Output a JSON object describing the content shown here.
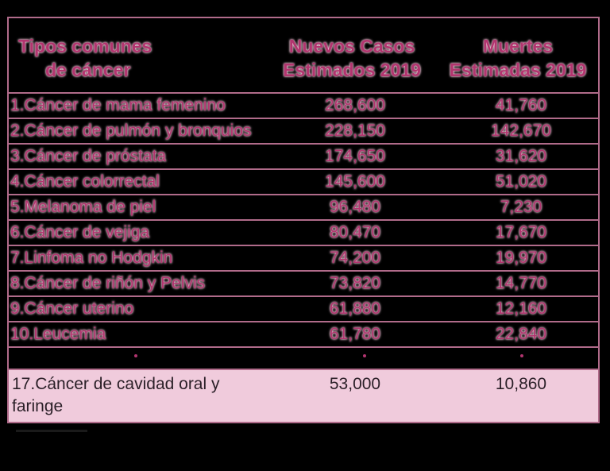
{
  "header": {
    "type_line1": "Tipos comunes",
    "type_line2": "de cáncer",
    "cases_line1": "Nuevos Casos",
    "cases_line2": "Estimados 2019",
    "deaths_line1": "Muertes",
    "deaths_line2": "Estimadas 2019"
  },
  "rows": [
    {
      "name": "1.Cáncer de mama femenino",
      "cases": "268,600",
      "deaths": "41,760"
    },
    {
      "name": "2.Cáncer de pulmón y bronquios",
      "cases": "228,150",
      "deaths": "142,670"
    },
    {
      "name": "3.Cáncer de próstata",
      "cases": "174,650",
      "deaths": "31,620"
    },
    {
      "name": "4.Cáncer colorrectal",
      "cases": "145,600",
      "deaths": "51,020"
    },
    {
      "name": "5.Melanoma de piel",
      "cases": "96,480",
      "deaths": "7,230"
    },
    {
      "name": "6.Cáncer de vejiga",
      "cases": "80,470",
      "deaths": "17,670"
    },
    {
      "name": "7.Linfoma no Hodgkin",
      "cases": "74,200",
      "deaths": "19,970"
    },
    {
      "name": "8.Cáncer de riñón y Pelvis",
      "cases": "73,820",
      "deaths": "14,770"
    },
    {
      "name": "9.Cáncer uterino",
      "cases": "61,880",
      "deaths": "12,160"
    },
    {
      "name": "10.Leucemia",
      "cases": "61,780",
      "deaths": "22,840"
    }
  ],
  "highlight": {
    "name": "17.Cáncer de cavidad oral y faringe",
    "cases": "53,000",
    "deaths": "10,860"
  }
}
